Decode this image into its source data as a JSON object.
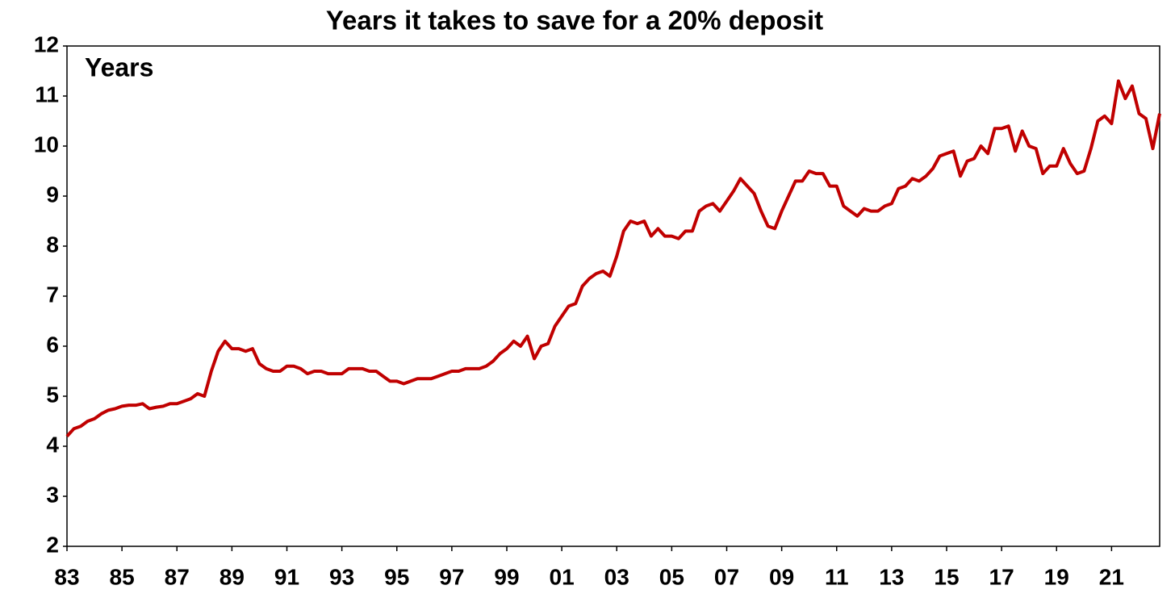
{
  "chart_data": {
    "type": "line",
    "title": "Years it takes to save for a 20% deposit",
    "annotation": "Years",
    "x": [
      1983,
      1983.25,
      1983.5,
      1983.75,
      1984,
      1984.25,
      1984.5,
      1984.75,
      1985,
      1985.25,
      1985.5,
      1985.75,
      1986,
      1986.25,
      1986.5,
      1986.75,
      1987,
      1987.25,
      1987.5,
      1987.75,
      1988,
      1988.25,
      1988.5,
      1988.75,
      1989,
      1989.25,
      1989.5,
      1989.75,
      1990,
      1990.25,
      1990.5,
      1990.75,
      1991,
      1991.25,
      1991.5,
      1991.75,
      1992,
      1992.25,
      1992.5,
      1992.75,
      1993,
      1993.25,
      1993.5,
      1993.75,
      1994,
      1994.25,
      1994.5,
      1994.75,
      1995,
      1995.25,
      1995.5,
      1995.75,
      1996,
      1996.25,
      1996.5,
      1996.75,
      1997,
      1997.25,
      1997.5,
      1997.75,
      1998,
      1998.25,
      1998.5,
      1998.75,
      1999,
      1999.25,
      1999.5,
      1999.75,
      2000,
      2000.25,
      2000.5,
      2000.75,
      2001,
      2001.25,
      2001.5,
      2001.75,
      2002,
      2002.25,
      2002.5,
      2002.75,
      2003,
      2003.25,
      2003.5,
      2003.75,
      2004,
      2004.25,
      2004.5,
      2004.75,
      2005,
      2005.25,
      2005.5,
      2005.75,
      2006,
      2006.25,
      2006.5,
      2006.75,
      2007,
      2007.25,
      2007.5,
      2007.75,
      2008,
      2008.25,
      2008.5,
      2008.75,
      2009,
      2009.25,
      2009.5,
      2009.75,
      2010,
      2010.25,
      2010.5,
      2010.75,
      2011,
      2011.25,
      2011.5,
      2011.75,
      2012,
      2012.25,
      2012.5,
      2012.75,
      2013,
      2013.25,
      2013.5,
      2013.75,
      2014,
      2014.25,
      2014.5,
      2014.75,
      2015,
      2015.25,
      2015.5,
      2015.75,
      2016,
      2016.25,
      2016.5,
      2016.75,
      2017,
      2017.25,
      2017.5,
      2017.75,
      2018,
      2018.25,
      2018.5,
      2018.75,
      2019,
      2019.25,
      2019.5,
      2019.75,
      2020,
      2020.25,
      2020.5,
      2020.75,
      2021,
      2021.25,
      2021.5,
      2021.75,
      2022,
      2022.25,
      2022.5,
      2022.75
    ],
    "series": [
      {
        "name": "Years",
        "color": "#c00000",
        "values": [
          4.2,
          4.35,
          4.4,
          4.5,
          4.55,
          4.65,
          4.72,
          4.75,
          4.8,
          4.82,
          4.82,
          4.85,
          4.75,
          4.78,
          4.8,
          4.85,
          4.85,
          4.9,
          4.95,
          5.05,
          5.0,
          5.5,
          5.9,
          6.1,
          5.95,
          5.95,
          5.9,
          5.95,
          5.65,
          5.55,
          5.5,
          5.5,
          5.6,
          5.6,
          5.55,
          5.45,
          5.5,
          5.5,
          5.45,
          5.45,
          5.45,
          5.55,
          5.55,
          5.55,
          5.5,
          5.5,
          5.4,
          5.3,
          5.3,
          5.25,
          5.3,
          5.35,
          5.35,
          5.35,
          5.4,
          5.45,
          5.5,
          5.5,
          5.55,
          5.55,
          5.55,
          5.6,
          5.7,
          5.85,
          5.95,
          6.1,
          6.0,
          6.2,
          5.75,
          6.0,
          6.05,
          6.4,
          6.6,
          6.8,
          6.85,
          7.2,
          7.35,
          7.45,
          7.5,
          7.4,
          7.8,
          8.3,
          8.5,
          8.45,
          8.5,
          8.2,
          8.35,
          8.2,
          8.2,
          8.15,
          8.3,
          8.3,
          8.7,
          8.8,
          8.85,
          8.7,
          8.9,
          9.1,
          9.35,
          9.2,
          9.05,
          8.7,
          8.4,
          8.35,
          8.7,
          9.0,
          9.3,
          9.3,
          9.5,
          9.45,
          9.45,
          9.2,
          9.2,
          8.8,
          8.7,
          8.6,
          8.75,
          8.7,
          8.7,
          8.8,
          8.85,
          9.15,
          9.2,
          9.35,
          9.3,
          9.4,
          9.55,
          9.8,
          9.85,
          9.9,
          9.4,
          9.7,
          9.75,
          10.0,
          9.85,
          10.35,
          10.35,
          10.4,
          9.9,
          10.3,
          10.0,
          9.95,
          9.45,
          9.6,
          9.6,
          9.95,
          9.65,
          9.45,
          9.5,
          9.95,
          10.5,
          10.6,
          10.45,
          11.3,
          10.95,
          11.2,
          10.65,
          10.55,
          9.95,
          10.65
        ]
      }
    ],
    "xlim": [
      1983,
      2022.75
    ],
    "xticks": [
      {
        "value": 1983,
        "label": "83"
      },
      {
        "value": 1985,
        "label": "85"
      },
      {
        "value": 1987,
        "label": "87"
      },
      {
        "value": 1989,
        "label": "89"
      },
      {
        "value": 1991,
        "label": "91"
      },
      {
        "value": 1993,
        "label": "93"
      },
      {
        "value": 1995,
        "label": "95"
      },
      {
        "value": 1997,
        "label": "97"
      },
      {
        "value": 1999,
        "label": "99"
      },
      {
        "value": 2001,
        "label": "01"
      },
      {
        "value": 2003,
        "label": "03"
      },
      {
        "value": 2005,
        "label": "05"
      },
      {
        "value": 2007,
        "label": "07"
      },
      {
        "value": 2009,
        "label": "09"
      },
      {
        "value": 2011,
        "label": "11"
      },
      {
        "value": 2013,
        "label": "13"
      },
      {
        "value": 2015,
        "label": "15"
      },
      {
        "value": 2017,
        "label": "17"
      },
      {
        "value": 2019,
        "label": "19"
      },
      {
        "value": 2021,
        "label": "21"
      }
    ],
    "ylim": [
      2,
      12
    ],
    "yticks": [
      2,
      3,
      4,
      5,
      6,
      7,
      8,
      9,
      10,
      11,
      12
    ],
    "grid": false
  }
}
